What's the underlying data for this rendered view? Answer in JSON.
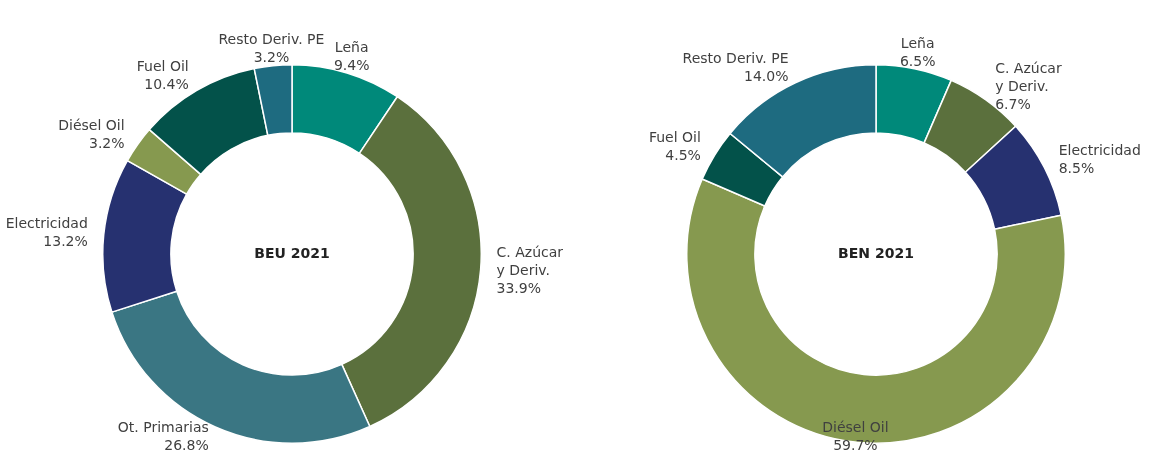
{
  "chart_data": [
    {
      "type": "donut",
      "title": "BEU 2021",
      "categories": [
        "Leña",
        "C. Azúcar y Deriv.",
        "Ot. Primarias",
        "Electricidad",
        "Diésel Oil",
        "Fuel Oil",
        "Resto Deriv. PE"
      ],
      "values": [
        9.4,
        33.9,
        26.8,
        13.2,
        3.2,
        10.4,
        3.2
      ],
      "value_labels": [
        "9.4%",
        "33.9%",
        "26.8%",
        "13.2%",
        "3.2%",
        "10.4%",
        "3.2%"
      ],
      "colors": [
        "#00897a",
        "#5b703d",
        "#3a7683",
        "#263170",
        "#86994f",
        "#03524a",
        "#1e6b80"
      ],
      "legend": false
    },
    {
      "type": "donut",
      "title": "BEN 2021",
      "categories": [
        "Leña",
        "C. Azúcar y Deriv.",
        "Electricidad",
        "Diésel Oil",
        "Fuel Oil",
        "Resto Deriv. PE"
      ],
      "values": [
        6.5,
        6.7,
        8.5,
        59.7,
        4.5,
        14.0
      ],
      "value_labels": [
        "6.5%",
        "6.7%",
        "8.5%",
        "59.7%",
        "4.5%",
        "14.0%"
      ],
      "colors": [
        "#00897a",
        "#5b703d",
        "#263170",
        "#86994f",
        "#03524a",
        "#1e6b80"
      ],
      "legend": false
    }
  ]
}
